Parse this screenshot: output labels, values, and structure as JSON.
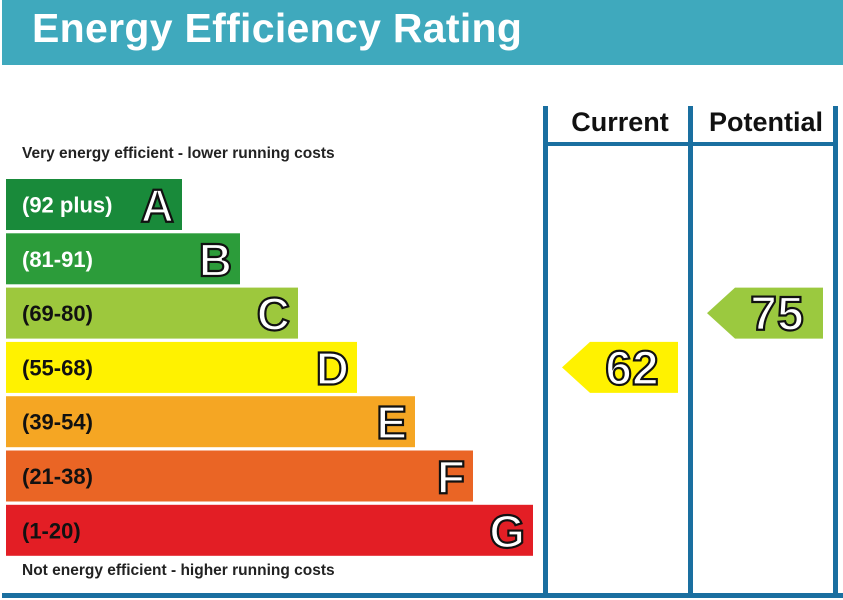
{
  "header": {
    "title": "Energy Efficiency Rating"
  },
  "labels": {
    "top": "Very energy efficient - lower running costs",
    "bottom": "Not energy efficient - higher running costs"
  },
  "columns": {
    "current": "Current",
    "potential": "Potential"
  },
  "chart_data": {
    "type": "bar",
    "bands": [
      {
        "letter": "A",
        "range": "(92 plus)",
        "color": "#008054"
      },
      {
        "letter": "B",
        "range": "(81-91)",
        "color": "#19b459"
      },
      {
        "letter": "C",
        "range": "(69-80)",
        "color": "#8dce46"
      },
      {
        "letter": "D",
        "range": "(55-68)",
        "color": "#ffd500"
      },
      {
        "letter": "E",
        "range": "(39-54)",
        "color": "#fcaa65"
      },
      {
        "letter": "F",
        "range": "(21-38)",
        "color": "#ef8023"
      },
      {
        "letter": "G",
        "range": "(1-20)",
        "color": "#e9153b"
      }
    ],
    "current": {
      "value": 62,
      "band": "D",
      "color": "#fff200"
    },
    "potential": {
      "value": 75,
      "band": "C",
      "color": "#9bc93f"
    }
  },
  "colors": {
    "A": "#198a3a",
    "B": "#2c9c3a",
    "C": "#9dc83d",
    "D": "#fff200",
    "E": "#f5a623",
    "F": "#ea6525",
    "G": "#e31e25",
    "frame": "#1a6fa0",
    "header": "#3fa9bd"
  }
}
